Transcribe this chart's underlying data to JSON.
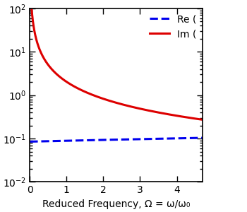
{
  "title": "",
  "xlabel": "Reduced Frequency, Ω = ω/ω₀",
  "ylabel": "",
  "xlim": [
    0,
    4.7
  ],
  "ylim_log": [
    -2,
    2
  ],
  "x_ticks": [
    0,
    1,
    2,
    3,
    4
  ],
  "legend_re_label": "Re (",
  "legend_im_label": "Im (",
  "re_color": "#0000EE",
  "im_color": "#DD0000",
  "re_linestyle": "dashed",
  "im_linestyle": "solid",
  "linewidth": 2.2,
  "background_color": "#FFFFFF",
  "figsize": [
    3.5,
    3.0
  ],
  "dpi": 100,
  "im_alpha": 1.0,
  "im_scale": 0.72,
  "re_base": 0.085,
  "re_slope": 0.004
}
